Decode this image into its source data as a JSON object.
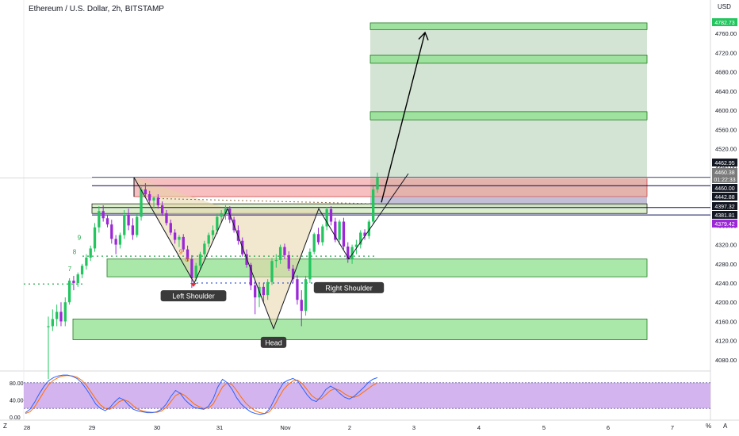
{
  "header": {
    "title": "Ethereum / U.S. Dollar, 2h, BITSTAMP",
    "currency": "USD",
    "corner_left": "Z",
    "corner_right_a": "A",
    "corner_right_pct": "%"
  },
  "colors": {
    "up": "#22c55e",
    "down": "#9b27d6",
    "zone_green_fill": "#8ee08e",
    "zone_green_stroke": "#1f7a1f",
    "zone_red_fill": "#f08a8a",
    "projection_fill": "#8fb88f",
    "stoch_band": "#c59be8",
    "stoch_k": "#2962ff",
    "stoch_d": "#ff6d00",
    "pattern_line": "#131722"
  },
  "chart_data": {
    "type": "candlestick",
    "title": "Ethereum / U.S. Dollar, 2h, BITSTAMP",
    "y_axis": {
      "min": 4060,
      "max": 4800,
      "ticks": [
        "4760.00",
        "4720.00",
        "4680.00",
        "4640.00",
        "4600.00",
        "4560.00",
        "4520.00",
        "4480.00",
        "4440.00",
        "4400.00",
        "4360.00",
        "4320.00",
        "4280.00",
        "4240.00",
        "4200.00",
        "4160.00",
        "4120.00",
        "4080.00"
      ]
    },
    "x_axis": {
      "ticks": [
        "28",
        "29",
        "30",
        "31",
        "Nov",
        "2",
        "3",
        "4",
        "5",
        "6",
        "7"
      ]
    },
    "price_labels": [
      {
        "text": "4782.73",
        "kind": "green"
      },
      {
        "text": "4462.95",
        "kind": "black"
      },
      {
        "text": "4460.38",
        "kind": "grey"
      },
      {
        "text": "01:22:33",
        "kind": "grey"
      },
      {
        "text": "4460.00",
        "kind": "black"
      },
      {
        "text": "4442.88",
        "kind": "black"
      },
      {
        "text": "4397.32",
        "kind": "black"
      },
      {
        "text": "4381.81",
        "kind": "black"
      },
      {
        "text": "4379.42",
        "kind": "purple"
      }
    ],
    "candles": [
      {
        "o": 4148,
        "h": 4170,
        "l": 4040,
        "c": 4150
      },
      {
        "o": 4150,
        "h": 4185,
        "l": 4140,
        "c": 4165
      },
      {
        "o": 4165,
        "h": 4195,
        "l": 4150,
        "c": 4180
      },
      {
        "o": 4180,
        "h": 4200,
        "l": 4150,
        "c": 4160
      },
      {
        "o": 4160,
        "h": 4210,
        "l": 4150,
        "c": 4200
      },
      {
        "o": 4200,
        "h": 4250,
        "l": 4195,
        "c": 4245
      },
      {
        "o": 4245,
        "h": 4255,
        "l": 4225,
        "c": 4240
      },
      {
        "o": 4240,
        "h": 4262,
        "l": 4232,
        "c": 4258
      },
      {
        "o": 4258,
        "h": 4280,
        "l": 4250,
        "c": 4276
      },
      {
        "o": 4276,
        "h": 4300,
        "l": 4268,
        "c": 4293
      },
      {
        "o": 4293,
        "h": 4318,
        "l": 4286,
        "c": 4312
      },
      {
        "o": 4312,
        "h": 4365,
        "l": 4305,
        "c": 4356
      },
      {
        "o": 4356,
        "h": 4400,
        "l": 4345,
        "c": 4390
      },
      {
        "o": 4390,
        "h": 4402,
        "l": 4368,
        "c": 4375
      },
      {
        "o": 4375,
        "h": 4383,
        "l": 4356,
        "c": 4362
      },
      {
        "o": 4362,
        "h": 4372,
        "l": 4322,
        "c": 4332
      },
      {
        "o": 4332,
        "h": 4340,
        "l": 4300,
        "c": 4320
      },
      {
        "o": 4320,
        "h": 4345,
        "l": 4312,
        "c": 4340
      },
      {
        "o": 4340,
        "h": 4392,
        "l": 4332,
        "c": 4383
      },
      {
        "o": 4383,
        "h": 4395,
        "l": 4350,
        "c": 4360
      },
      {
        "o": 4360,
        "h": 4375,
        "l": 4330,
        "c": 4340
      },
      {
        "o": 4340,
        "h": 4385,
        "l": 4335,
        "c": 4378
      },
      {
        "o": 4378,
        "h": 4440,
        "l": 4370,
        "c": 4435
      },
      {
        "o": 4435,
        "h": 4448,
        "l": 4420,
        "c": 4425
      },
      {
        "o": 4425,
        "h": 4432,
        "l": 4405,
        "c": 4412
      },
      {
        "o": 4412,
        "h": 4420,
        "l": 4395,
        "c": 4418
      },
      {
        "o": 4418,
        "h": 4425,
        "l": 4395,
        "c": 4402
      },
      {
        "o": 4402,
        "h": 4410,
        "l": 4380,
        "c": 4385
      },
      {
        "o": 4385,
        "h": 4392,
        "l": 4360,
        "c": 4365
      },
      {
        "o": 4365,
        "h": 4372,
        "l": 4340,
        "c": 4345
      },
      {
        "o": 4345,
        "h": 4352,
        "l": 4322,
        "c": 4330
      },
      {
        "o": 4330,
        "h": 4340,
        "l": 4315,
        "c": 4336
      },
      {
        "o": 4336,
        "h": 4342,
        "l": 4305,
        "c": 4310
      },
      {
        "o": 4310,
        "h": 4318,
        "l": 4285,
        "c": 4290
      },
      {
        "o": 4290,
        "h": 4298,
        "l": 4230,
        "c": 4250
      },
      {
        "o": 4250,
        "h": 4282,
        "l": 4244,
        "c": 4276
      },
      {
        "o": 4276,
        "h": 4305,
        "l": 4268,
        "c": 4300
      },
      {
        "o": 4300,
        "h": 4328,
        "l": 4292,
        "c": 4322
      },
      {
        "o": 4322,
        "h": 4345,
        "l": 4315,
        "c": 4340
      },
      {
        "o": 4340,
        "h": 4360,
        "l": 4330,
        "c": 4350
      },
      {
        "o": 4350,
        "h": 4384,
        "l": 4342,
        "c": 4378
      },
      {
        "o": 4378,
        "h": 4392,
        "l": 4365,
        "c": 4385
      },
      {
        "o": 4385,
        "h": 4402,
        "l": 4372,
        "c": 4395
      },
      {
        "o": 4395,
        "h": 4400,
        "l": 4365,
        "c": 4372
      },
      {
        "o": 4372,
        "h": 4378,
        "l": 4345,
        "c": 4350
      },
      {
        "o": 4350,
        "h": 4360,
        "l": 4320,
        "c": 4328
      },
      {
        "o": 4328,
        "h": 4335,
        "l": 4295,
        "c": 4300
      },
      {
        "o": 4300,
        "h": 4310,
        "l": 4272,
        "c": 4278
      },
      {
        "o": 4278,
        "h": 4282,
        "l": 4225,
        "c": 4235
      },
      {
        "o": 4235,
        "h": 4245,
        "l": 4175,
        "c": 4210
      },
      {
        "o": 4210,
        "h": 4240,
        "l": 4190,
        "c": 4232
      },
      {
        "o": 4232,
        "h": 4240,
        "l": 4200,
        "c": 4215
      },
      {
        "o": 4215,
        "h": 4248,
        "l": 4205,
        "c": 4242
      },
      {
        "o": 4242,
        "h": 4292,
        "l": 4236,
        "c": 4286
      },
      {
        "o": 4286,
        "h": 4300,
        "l": 4272,
        "c": 4288
      },
      {
        "o": 4288,
        "h": 4320,
        "l": 4280,
        "c": 4315
      },
      {
        "o": 4315,
        "h": 4322,
        "l": 4290,
        "c": 4298
      },
      {
        "o": 4298,
        "h": 4306,
        "l": 4265,
        "c": 4270
      },
      {
        "o": 4270,
        "h": 4278,
        "l": 4240,
        "c": 4248
      },
      {
        "o": 4248,
        "h": 4256,
        "l": 4195,
        "c": 4205
      },
      {
        "o": 4205,
        "h": 4225,
        "l": 4150,
        "c": 4182
      },
      {
        "o": 4182,
        "h": 4255,
        "l": 4172,
        "c": 4248
      },
      {
        "o": 4248,
        "h": 4312,
        "l": 4240,
        "c": 4305
      },
      {
        "o": 4305,
        "h": 4345,
        "l": 4300,
        "c": 4342
      },
      {
        "o": 4342,
        "h": 4355,
        "l": 4320,
        "c": 4325
      },
      {
        "o": 4325,
        "h": 4362,
        "l": 4318,
        "c": 4358
      },
      {
        "o": 4358,
        "h": 4398,
        "l": 4350,
        "c": 4394
      },
      {
        "o": 4394,
        "h": 4400,
        "l": 4360,
        "c": 4368
      },
      {
        "o": 4368,
        "h": 4376,
        "l": 4325,
        "c": 4330
      },
      {
        "o": 4330,
        "h": 4372,
        "l": 4320,
        "c": 4368
      },
      {
        "o": 4368,
        "h": 4376,
        "l": 4310,
        "c": 4316
      },
      {
        "o": 4316,
        "h": 4325,
        "l": 4282,
        "c": 4290
      },
      {
        "o": 4290,
        "h": 4320,
        "l": 4280,
        "c": 4315
      },
      {
        "o": 4315,
        "h": 4330,
        "l": 4300,
        "c": 4320
      },
      {
        "o": 4320,
        "h": 4350,
        "l": 4312,
        "c": 4345
      },
      {
        "o": 4345,
        "h": 4352,
        "l": 4330,
        "c": 4338
      },
      {
        "o": 4338,
        "h": 4372,
        "l": 4332,
        "c": 4368
      },
      {
        "o": 4368,
        "h": 4442,
        "l": 4362,
        "c": 4435
      },
      {
        "o": 4435,
        "h": 4470,
        "l": 4428,
        "c": 4460
      }
    ],
    "zones": {
      "green_boxes": [
        {
          "y1": 4782,
          "y2": 4768,
          "x_start": "proj",
          "x_end": "right"
        },
        {
          "y1": 4715,
          "y2": 4698,
          "x_start": "proj",
          "x_end": "right"
        },
        {
          "y1": 4597,
          "y2": 4580,
          "x_start": "proj",
          "x_end": "right"
        },
        {
          "y1": 4290,
          "y2": 4253,
          "x_start": "left2",
          "x_end": "right"
        },
        {
          "y1": 4165,
          "y2": 4122,
          "x_start": "left1",
          "x_end": "right"
        }
      ],
      "projection": {
        "y1": 4782,
        "y2": 4400
      },
      "red_box": {
        "y1": 4460,
        "y2": 4420
      },
      "h_lines": [
        4460,
        4442.88,
        4397.32,
        4381.81
      ]
    },
    "annotations": [
      {
        "text": "Left Shoulder"
      },
      {
        "text": "Head"
      },
      {
        "text": "Right Shoulder"
      }
    ],
    "td_counts": [
      "9",
      "8",
      "7",
      "9",
      "8"
    ],
    "stochastic": {
      "y_ticks": [
        "80.00",
        "40.00",
        "0.00"
      ],
      "upper": 80,
      "lower": 20,
      "k": [
        10,
        18,
        35,
        55,
        72,
        85,
        92,
        96,
        98,
        98,
        95,
        90,
        80,
        65,
        48,
        30,
        20,
        15,
        22,
        35,
        45,
        40,
        28,
        18,
        14,
        12,
        10,
        10,
        12,
        18,
        30,
        48,
        62,
        55,
        40,
        30,
        22,
        20,
        18,
        25,
        42,
        70,
        88,
        80,
        65,
        45,
        30,
        20,
        12,
        8,
        6,
        8,
        18,
        40,
        62,
        80,
        86,
        90,
        84,
        68,
        52,
        40,
        36,
        48,
        64,
        72,
        66,
        55,
        46,
        42,
        48,
        58,
        68,
        80,
        88,
        92
      ],
      "d": [
        8,
        12,
        24,
        42,
        60,
        76,
        86,
        92,
        96,
        97,
        96,
        93,
        86,
        74,
        58,
        42,
        28,
        20,
        18,
        26,
        36,
        40,
        36,
        26,
        18,
        14,
        12,
        11,
        11,
        14,
        22,
        36,
        50,
        56,
        50,
        40,
        30,
        24,
        20,
        21,
        30,
        50,
        70,
        80,
        76,
        62,
        46,
        32,
        22,
        14,
        10,
        8,
        12,
        26,
        46,
        64,
        76,
        84,
        86,
        78,
        64,
        50,
        42,
        42,
        52,
        62,
        66,
        62,
        54,
        48,
        46,
        50,
        58,
        66,
        74,
        80
      ]
    }
  }
}
